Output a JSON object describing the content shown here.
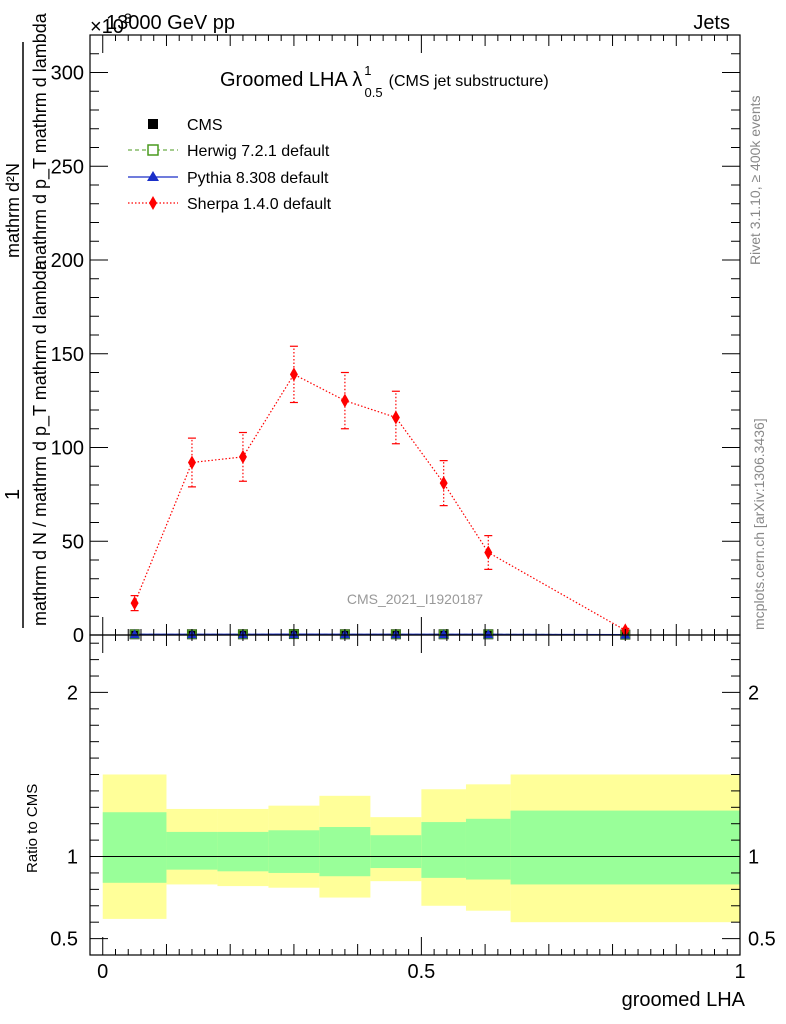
{
  "header": {
    "left": "13000 GeV pp",
    "right": "Jets",
    "exponent": "×10",
    "exponent_power": "3"
  },
  "side_labels": {
    "rivet": "Rivet 3.1.10, ≥ 400k events",
    "mcplots": "mcplots.cern.ch [arXiv:1306.3436]"
  },
  "colors": {
    "cms": "#000000",
    "herwig": "#4a9a1e",
    "pythia": "#1a2fc8",
    "sherpa": "#ff0000",
    "band_inner": "#99ff99",
    "band_outer": "#ffff99"
  },
  "chart_data": [
    {
      "type": "line",
      "title": "Groomed LHA λ",
      "title_sup": "1",
      "title_sub": "0.5",
      "title_suffix": "(CMS jet substructure)",
      "ylabel_top": "1",
      "ylabel_bottom": "mathrm d N / mathrm d p_T mathrm d lambda",
      "ylabel_num": "mathrm d²N",
      "ylabel_den": "mathrm d p_T mathrm d lambda",
      "xlim": [
        -0.02,
        1.0
      ],
      "ylim": [
        0,
        320
      ],
      "yticks": [
        0,
        50,
        100,
        150,
        200,
        250,
        300
      ],
      "yticklabels": [
        "0",
        "50",
        "100",
        "150",
        "200",
        "250",
        "300"
      ],
      "watermark": "CMS_2021_I1920187",
      "legend": [
        {
          "key": "cms",
          "label": "CMS",
          "marker": "square"
        },
        {
          "key": "herwig",
          "label": "Herwig 7.2.1 default",
          "marker": "open-square"
        },
        {
          "key": "pythia",
          "label": "Pythia 8.308 default",
          "marker": "triangle"
        },
        {
          "key": "sherpa",
          "label": "Sherpa 1.4.0 default",
          "marker": "diamond"
        }
      ],
      "series": [
        {
          "name": "CMS",
          "key": "cms",
          "x": [
            0.05,
            0.14,
            0.22,
            0.3,
            0.38,
            0.46,
            0.535,
            0.605,
            0.82
          ],
          "y": [
            0.4,
            0.4,
            0.4,
            0.5,
            0.4,
            0.4,
            0.4,
            0.4,
            0.2
          ]
        },
        {
          "name": "Herwig 7.2.1 default",
          "key": "herwig",
          "x": [
            0.05,
            0.14,
            0.22,
            0.3,
            0.38,
            0.46,
            0.535,
            0.605,
            0.82
          ],
          "y": [
            0.4,
            0.4,
            0.4,
            0.5,
            0.4,
            0.4,
            0.4,
            0.4,
            0.2
          ]
        },
        {
          "name": "Pythia 8.308 default",
          "key": "pythia",
          "x": [
            0.05,
            0.14,
            0.22,
            0.3,
            0.38,
            0.46,
            0.535,
            0.605,
            0.82
          ],
          "y": [
            0.4,
            0.4,
            0.4,
            0.5,
            0.4,
            0.4,
            0.4,
            0.4,
            0.2
          ]
        },
        {
          "name": "Sherpa 1.4.0 default",
          "key": "sherpa",
          "x": [
            0.05,
            0.14,
            0.22,
            0.3,
            0.38,
            0.46,
            0.535,
            0.605,
            0.82
          ],
          "y": [
            17,
            92,
            95,
            139,
            125,
            116,
            81,
            44,
            2.5
          ],
          "err": [
            4,
            13,
            13,
            15,
            15,
            14,
            12,
            9,
            1
          ]
        }
      ]
    },
    {
      "type": "area",
      "ylabel": "Ratio to CMS",
      "xlabel": "groomed LHA",
      "xlim": [
        -0.02,
        1.0
      ],
      "ylim": [
        0.4,
        2.35
      ],
      "yticks": [
        0.5,
        1,
        2
      ],
      "yticklabels": [
        "0.5",
        "1",
        "2"
      ],
      "xticks": [
        0,
        0.5,
        1
      ],
      "xticklabels": [
        "0",
        "0.5",
        "1"
      ],
      "bins": [
        {
          "lo": 0.0,
          "hi": 0.1,
          "inner": [
            0.84,
            1.27
          ],
          "outer": [
            0.62,
            1.5
          ]
        },
        {
          "lo": 0.1,
          "hi": 0.18,
          "inner": [
            0.92,
            1.15
          ],
          "outer": [
            0.83,
            1.29
          ]
        },
        {
          "lo": 0.18,
          "hi": 0.26,
          "inner": [
            0.91,
            1.15
          ],
          "outer": [
            0.82,
            1.29
          ]
        },
        {
          "lo": 0.26,
          "hi": 0.34,
          "inner": [
            0.9,
            1.16
          ],
          "outer": [
            0.81,
            1.31
          ]
        },
        {
          "lo": 0.34,
          "hi": 0.42,
          "inner": [
            0.88,
            1.18
          ],
          "outer": [
            0.75,
            1.37
          ]
        },
        {
          "lo": 0.42,
          "hi": 0.5,
          "inner": [
            0.93,
            1.13
          ],
          "outer": [
            0.85,
            1.24
          ]
        },
        {
          "lo": 0.5,
          "hi": 0.57,
          "inner": [
            0.87,
            1.21
          ],
          "outer": [
            0.7,
            1.41
          ]
        },
        {
          "lo": 0.57,
          "hi": 0.64,
          "inner": [
            0.86,
            1.23
          ],
          "outer": [
            0.67,
            1.44
          ]
        },
        {
          "lo": 0.64,
          "hi": 1.0,
          "inner": [
            0.83,
            1.28
          ],
          "outer": [
            0.6,
            1.5
          ]
        }
      ]
    }
  ]
}
